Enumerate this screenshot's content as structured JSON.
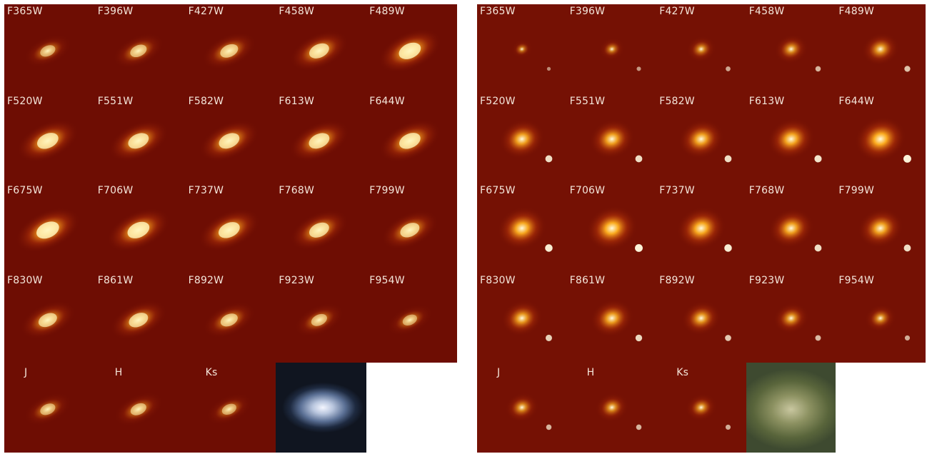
{
  "panels": [
    {
      "id": "left",
      "object": "spiral",
      "labels": [
        "F365W",
        "F396W",
        "F427W",
        "F458W",
        "F489W",
        "F520W",
        "F551W",
        "F582W",
        "F613W",
        "F644W",
        "F675W",
        "F706W",
        "F737W",
        "F768W",
        "F799W",
        "F830W",
        "F861W",
        "F892W",
        "F923W",
        "F954W",
        "J",
        "H",
        "Ks",
        "",
        ""
      ],
      "brightness": [
        0.35,
        0.45,
        0.55,
        0.7,
        0.85,
        0.8,
        0.75,
        0.75,
        0.75,
        0.8,
        0.9,
        0.85,
        0.8,
        0.7,
        0.65,
        0.6,
        0.65,
        0.5,
        0.4,
        0.3,
        0.35,
        0.4,
        0.3,
        0,
        0
      ],
      "colors": {
        "background": "#6e0d03",
        "glow": "#ffb020",
        "core": "#fff6c0"
      }
    },
    {
      "id": "right",
      "object": "elliptical",
      "labels": [
        "F365W",
        "F396W",
        "F427W",
        "F458W",
        "F489W",
        "F520W",
        "F551W",
        "F582W",
        "F613W",
        "F644W",
        "F675W",
        "F706W",
        "F737W",
        "F768W",
        "F799W",
        "F830W",
        "F861W",
        "F892W",
        "F923W",
        "F954W",
        "J",
        "H",
        "Ks",
        "",
        ""
      ],
      "brightness": [
        0.2,
        0.3,
        0.4,
        0.5,
        0.6,
        0.8,
        0.8,
        0.8,
        0.85,
        0.95,
        0.9,
        0.95,
        0.9,
        0.8,
        0.8,
        0.7,
        0.75,
        0.65,
        0.55,
        0.45,
        0.5,
        0.5,
        0.45,
        0,
        0
      ],
      "colors": {
        "background": "#751104",
        "glow": "#ffb020",
        "core": "#fffbe0"
      }
    }
  ]
}
